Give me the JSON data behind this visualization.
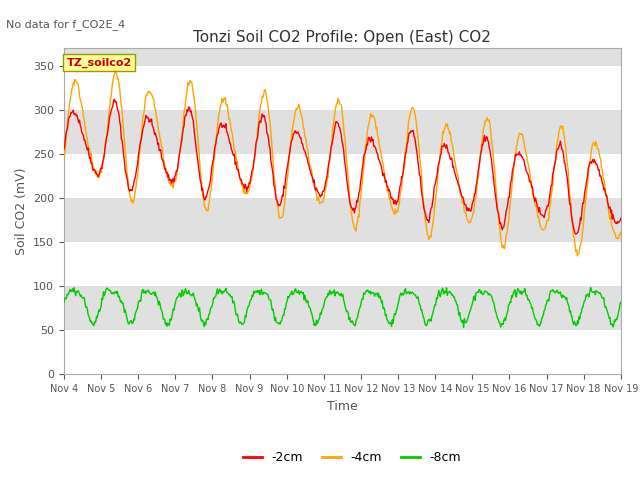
{
  "title": "Tonzi Soil CO2 Profile: Open (East) CO2",
  "no_data_text": "No data for f_CO2E_4",
  "ylabel": "Soil CO2 (mV)",
  "xlabel": "Time",
  "legend_box_label": "TZ_soilco2",
  "ylim": [
    0,
    370
  ],
  "yticks": [
    0,
    50,
    100,
    150,
    200,
    250,
    300,
    350
  ],
  "x_tick_labels": [
    "Nov 4",
    "Nov 5",
    "Nov 6",
    "Nov 7",
    "Nov 8",
    "Nov 9",
    "Nov 10",
    "Nov 11",
    "Nov 12",
    "Nov 13",
    "Nov 14",
    "Nov 15",
    "Nov 16",
    "Nov 17",
    "Nov 18",
    "Nov 19"
  ],
  "color_2cm": "#FF0000",
  "color_4cm": "#FFA500",
  "color_8cm": "#00CC00",
  "band_color": "#E0E0E0",
  "band_ranges": [
    [
      50,
      100
    ],
    [
      150,
      200
    ],
    [
      250,
      300
    ],
    [
      350,
      400
    ]
  ],
  "line_width": 1.0,
  "legend_entries": [
    "-2cm",
    "-4cm",
    "-8cm"
  ],
  "title_fontsize": 11,
  "ylabel_fontsize": 9,
  "xlabel_fontsize": 9,
  "tick_fontsize": 8,
  "xtick_fontsize": 7
}
